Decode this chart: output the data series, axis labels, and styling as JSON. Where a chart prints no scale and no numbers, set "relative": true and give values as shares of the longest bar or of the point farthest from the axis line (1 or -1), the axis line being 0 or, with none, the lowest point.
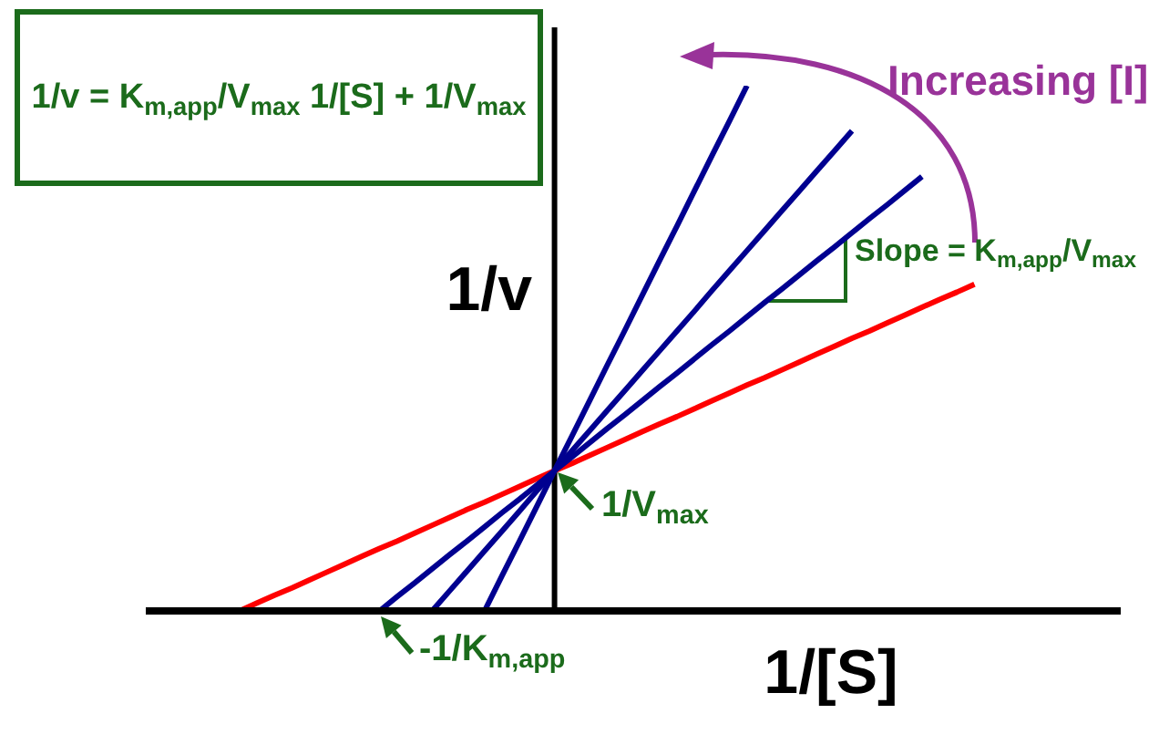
{
  "chart_data": {
    "type": "line",
    "relative": true,
    "xlabel": "1/[S]",
    "ylabel": "1/v",
    "categories": [
      null,
      null,
      null,
      null,
      null,
      null,
      null,
      null,
      null,
      null,
      null,
      null,
      null,
      null,
      null,
      null,
      null,
      null,
      null,
      null,
      null,
      null,
      null,
      null,
      null,
      null,
      null,
      null,
      null,
      null,
      null,
      null,
      null,
      null,
      null,
      null,
      null,
      null,
      null,
      null,
      null,
      null,
      null,
      null,
      null,
      null,
      null,
      null,
      null,
      null,
      null,
      null,
      null,
      null,
      null,
      null
    ],
    "series": [
      {
        "color": "#ff0000",
        "values": [
          null,
          null,
          null,
          null,
          null,
          0,
          0.015,
          0.03,
          0.044,
          0.059,
          0.074,
          0.089,
          0.104,
          0.119,
          0.133,
          0.148,
          0.163,
          0.178,
          0.193,
          0.207,
          0.222,
          0.237,
          0.252,
          0.267,
          0.281,
          0.296,
          0.311,
          0.326,
          0.341,
          0.356,
          0.37,
          0.385,
          0.4,
          0.415,
          0.43,
          0.444,
          0.459,
          0.474,
          0.489,
          0.504,
          0.519,
          0.533,
          0.548,
          0.563,
          0.578,
          0.593,
          0.607,
          0.622,
          null,
          null,
          null,
          null,
          null,
          null,
          null,
          null
        ]
      },
      {
        "color": "#000090",
        "values": [
          null,
          null,
          null,
          null,
          null,
          null,
          null,
          null,
          null,
          null,
          null,
          null,
          null,
          0,
          0.027,
          0.053,
          0.08,
          0.107,
          0.133,
          0.16,
          0.187,
          0.213,
          0.24,
          0.267,
          0.293,
          0.32,
          0.347,
          0.373,
          0.4,
          0.427,
          0.453,
          0.48,
          0.507,
          0.533,
          0.56,
          0.587,
          0.613,
          0.64,
          0.667,
          0.693,
          0.72,
          0.747,
          0.773,
          0.8,
          0.827,
          null,
          null,
          null,
          null,
          null,
          null,
          null,
          null,
          null,
          null,
          null
        ]
      },
      {
        "color": "#000090",
        "values": [
          null,
          null,
          null,
          null,
          null,
          null,
          null,
          null,
          null,
          null,
          null,
          null,
          null,
          null,
          null,
          null,
          0,
          0.038,
          0.076,
          0.114,
          0.152,
          0.19,
          0.229,
          0.267,
          0.305,
          0.343,
          0.381,
          0.419,
          0.457,
          0.495,
          0.533,
          0.571,
          0.61,
          0.648,
          0.686,
          0.724,
          0.762,
          0.8,
          0.838,
          0.876,
          0.914,
          null,
          null,
          null,
          null,
          null,
          null,
          null,
          null,
          null,
          null,
          null,
          null,
          null,
          null,
          null
        ]
      },
      {
        "color": "#000090",
        "values": [
          null,
          null,
          null,
          null,
          null,
          null,
          null,
          null,
          null,
          null,
          null,
          null,
          null,
          null,
          null,
          null,
          null,
          null,
          null,
          0,
          0.067,
          0.133,
          0.2,
          0.267,
          0.333,
          0.4,
          0.467,
          0.533,
          0.6,
          0.667,
          0.733,
          0.8,
          0.867,
          0.933,
          1,
          null,
          null,
          null,
          null,
          null,
          null,
          null,
          null,
          null,
          null,
          null,
          null,
          null,
          null,
          null,
          null,
          null,
          null,
          null,
          null,
          null
        ]
      }
    ],
    "annotations": [
      "1/v = K$_{m,app}$/V$_{max}$ 1/[S] + 1/V$_{max}$",
      "Increasing [I]",
      "Slope = K$_{m,app}$/V$_{max}$",
      "1/V$_{max}$",
      "-1/K$_{m,app}$"
    ]
  }
}
